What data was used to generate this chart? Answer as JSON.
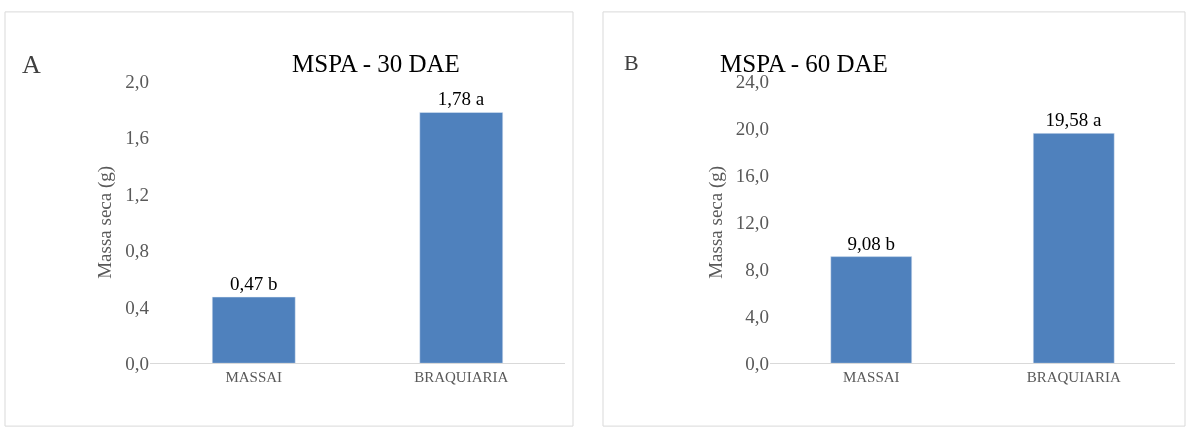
{
  "chart_data": [
    {
      "type": "bar",
      "title": "MSPA - 30 DAE",
      "ylabel": "Massa seca (g)",
      "annotations": [
        "A"
      ],
      "categories": [
        "MASSAI",
        "BRAQUIARIA"
      ],
      "values": [
        0.47,
        1.78
      ],
      "value_labels": [
        "0,47 b",
        "1,78 a"
      ],
      "color": "#4f81bd",
      "ylim": [
        0,
        2.0
      ],
      "yticks": [
        {
          "value": 0,
          "label": "0,0"
        },
        {
          "value": 0.4,
          "label": "0,4"
        },
        {
          "value": 0.8,
          "label": "0,8"
        },
        {
          "value": 1.2,
          "label": "1,2"
        },
        {
          "value": 1.6,
          "label": "1,6"
        },
        {
          "value": 2.0,
          "label": "2,0"
        }
      ],
      "grid": false
    },
    {
      "type": "bar",
      "title": "MSPA - 60 DAE",
      "ylabel": "Massa seca (g)",
      "annotations": [
        "B"
      ],
      "categories": [
        "MASSAI",
        "BRAQUIARIA"
      ],
      "values": [
        9.08,
        19.58
      ],
      "value_labels": [
        "9,08 b",
        "19,58 a"
      ],
      "color": "#4f81bd",
      "ylim": [
        0,
        24.0
      ],
      "yticks": [
        {
          "value": 0,
          "label": "0,0"
        },
        {
          "value": 4,
          "label": "4,0"
        },
        {
          "value": 8,
          "label": "8,0"
        },
        {
          "value": 12,
          "label": "12,0"
        },
        {
          "value": 16,
          "label": "16,0"
        },
        {
          "value": 20,
          "label": "20,0"
        },
        {
          "value": 24,
          "label": "24,0"
        }
      ],
      "grid": false
    }
  ]
}
